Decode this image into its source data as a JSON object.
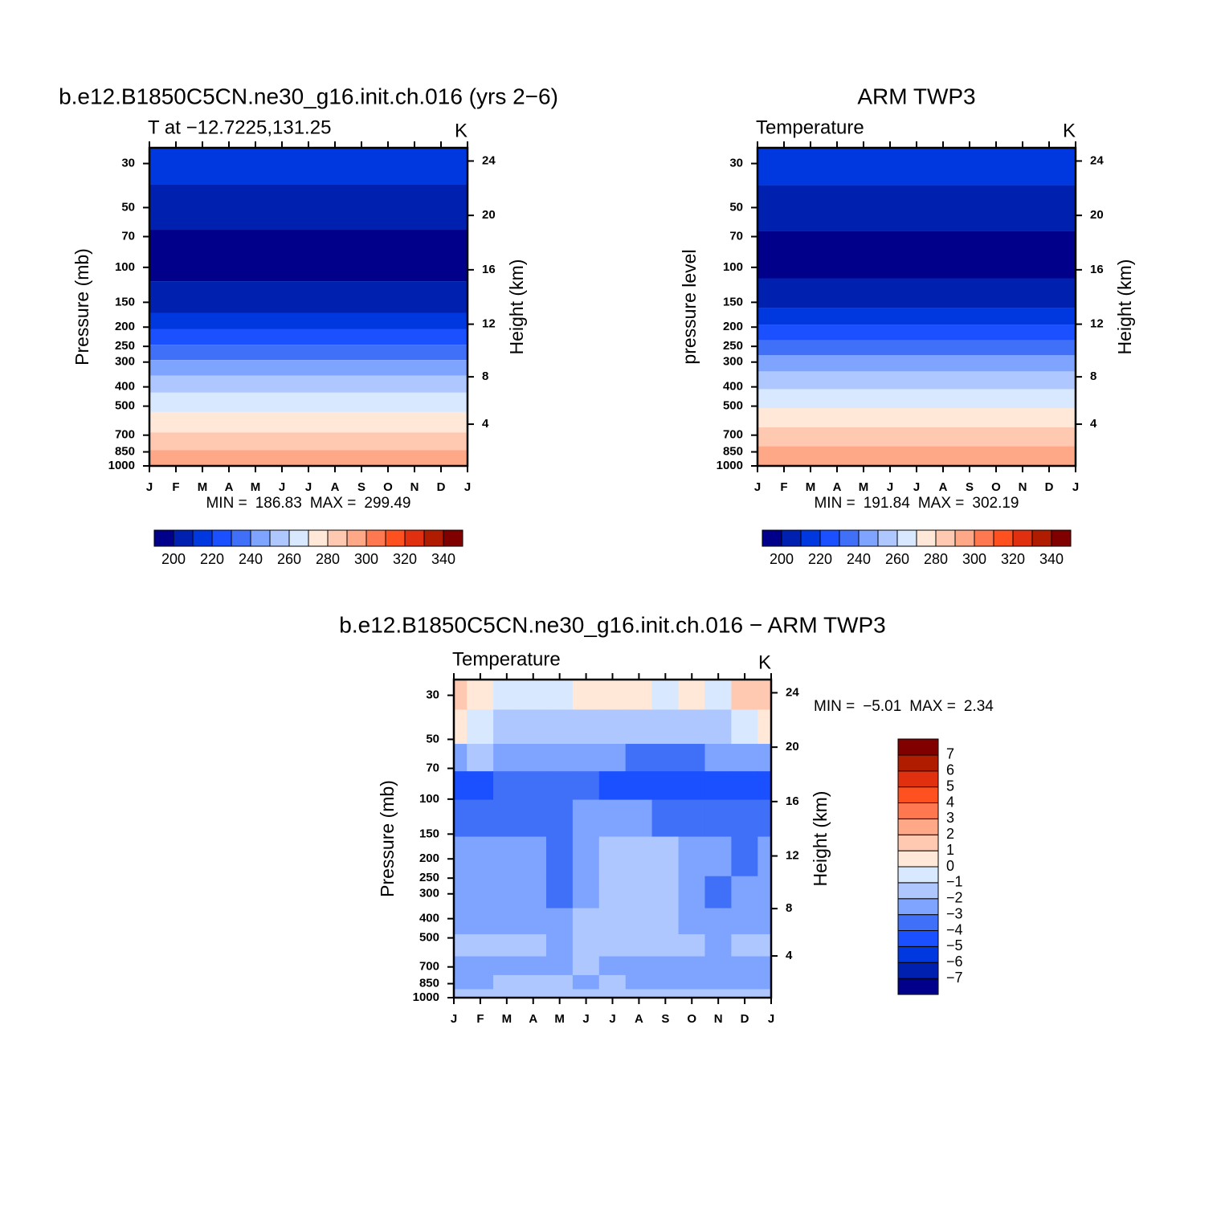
{
  "chart_data": [
    {
      "type": "contour",
      "title": "b.e12.B1850C5CN.ne30_g16.init.ch.016 (yrs 2−6)",
      "subtitle": "T at −12.7225,131.25",
      "units": "K",
      "ylabel": "Pressure (mb)",
      "y2label": "Height (km)",
      "categories": [
        "J",
        "F",
        "M",
        "A",
        "M",
        "J",
        "J",
        "A",
        "S",
        "O",
        "N",
        "D",
        "J"
      ],
      "ylim": [
        1000,
        25
      ],
      "yticks": [
        30,
        50,
        70,
        100,
        150,
        200,
        250,
        300,
        400,
        500,
        700,
        850,
        1000
      ],
      "y2ticks": [
        4,
        8,
        12,
        16,
        20,
        24
      ],
      "log_scale": true,
      "pressure": [
        31,
        47,
        89,
        155,
        187,
        225,
        268,
        320,
        386,
        474,
        604,
        763,
        911
      ],
      "values": [
        215,
        205,
        195,
        205,
        215,
        225,
        235,
        245,
        255,
        265,
        275,
        285,
        295
      ],
      "stats": [
        {
          "name": "MIN =",
          "value": 186.83
        },
        {
          "name": "MAX =",
          "value": 299.49
        }
      ],
      "colorbar": "horizontal",
      "levels": [
        200,
        210,
        220,
        230,
        240,
        250,
        260,
        270,
        280,
        290,
        300,
        310,
        320,
        330,
        340
      ],
      "colorbar_ticks": [
        200,
        220,
        240,
        260,
        280,
        300,
        320,
        340
      ],
      "colors": [
        "#00008a",
        "#0020b0",
        "#0038e0",
        "#1a50ff",
        "#4070f8",
        "#7ea4ff",
        "#aec8ff",
        "#d8e8ff",
        "#ffe8d8",
        "#ffc8b0",
        "#ffa888",
        "#ff7850",
        "#ff5020",
        "#e03010",
        "#b01c00",
        "#800000"
      ]
    },
    {
      "type": "contour",
      "title": "ARM TWP3",
      "subtitle": "Temperature",
      "units": "K",
      "ylabel": "pressure level",
      "y2label": "Height (km)",
      "categories": [
        "J",
        "F",
        "M",
        "A",
        "M",
        "J",
        "J",
        "A",
        "S",
        "O",
        "N",
        "D",
        "J"
      ],
      "ylim": [
        1000,
        25
      ],
      "yticks": [
        30,
        50,
        70,
        100,
        150,
        200,
        250,
        300,
        400,
        500,
        700,
        850,
        1000
      ],
      "y2ticks": [
        4,
        8,
        12,
        16,
        20,
        24
      ],
      "log_scale": true,
      "pressure": [
        31,
        48,
        89,
        145,
        177,
        213,
        254,
        303,
        369,
        457,
        574,
        713,
        890
      ],
      "values": [
        215,
        205,
        195,
        205,
        215,
        225,
        235,
        245,
        255,
        265,
        275,
        285,
        295
      ],
      "stats": [
        {
          "name": "MIN =",
          "value": 191.84
        },
        {
          "name": "MAX =",
          "value": 302.19
        }
      ],
      "colorbar": "horizontal",
      "levels": [
        200,
        210,
        220,
        230,
        240,
        250,
        260,
        270,
        280,
        290,
        300,
        310,
        320,
        330,
        340
      ],
      "colorbar_ticks": [
        200,
        220,
        240,
        260,
        280,
        300,
        320,
        340
      ],
      "colors": [
        "#00008a",
        "#0020b0",
        "#0038e0",
        "#1a50ff",
        "#4070f8",
        "#7ea4ff",
        "#aec8ff",
        "#d8e8ff",
        "#ffe8d8",
        "#ffc8b0",
        "#ffa888",
        "#ff7850",
        "#ff5020",
        "#e03010",
        "#b01c00",
        "#800000"
      ]
    },
    {
      "type": "contour2d",
      "title": "b.e12.B1850C5CN.ne30_g16.init.ch.016 − ARM TWP3",
      "subtitle": "Temperature",
      "units": "K",
      "ylabel": "Pressure (mb)",
      "y2label": "Height (km)",
      "categories": [
        "J",
        "F",
        "M",
        "A",
        "M",
        "J",
        "J",
        "A",
        "S",
        "O",
        "N",
        "D",
        "J"
      ],
      "ylim": [
        1000,
        25
      ],
      "yticks": [
        30,
        50,
        70,
        100,
        150,
        200,
        250,
        300,
        400,
        500,
        700,
        850,
        1000
      ],
      "y2ticks": [
        4,
        8,
        12,
        16,
        20,
        24
      ],
      "log_scale": true,
      "pressure": [
        28,
        45,
        62,
        85,
        120,
        200,
        300,
        420,
        550,
        700,
        850,
        970
      ],
      "values": [
        [
          1.2,
          0.5,
          -0.5,
          -0.5,
          -0.5,
          0.3,
          0.3,
          0.3,
          -0.5,
          0.3,
          -0.5,
          1.2,
          1.2
        ],
        [
          0.3,
          -0.5,
          -1.5,
          -1.5,
          -1.5,
          -1.5,
          -1.5,
          -1.5,
          -1.5,
          -1.5,
          -1.5,
          -0.5,
          0.3
        ],
        [
          -2.5,
          -1.5,
          -2.5,
          -2.5,
          -2.5,
          -2.5,
          -2.5,
          -3.5,
          -3.5,
          -3.5,
          -2.5,
          -2.5,
          -2.5
        ],
        [
          -4.5,
          -4.5,
          -3.5,
          -3.5,
          -3.5,
          -3.5,
          -4.5,
          -4.5,
          -4.5,
          -4.5,
          -4.5,
          -4.5,
          -4.5
        ],
        [
          -3.5,
          -3.5,
          -3.5,
          -3.5,
          -3.5,
          -2.5,
          -2.5,
          -2.5,
          -3.5,
          -3.5,
          -3.5,
          -3.5,
          -3.5
        ],
        [
          -2.5,
          -2.5,
          -2.5,
          -2.5,
          -3.5,
          -2.5,
          -1.5,
          -1.5,
          -1.5,
          -2.5,
          -2.5,
          -3.5,
          -2.5
        ],
        [
          -2.5,
          -2.5,
          -2.5,
          -2.5,
          -3.5,
          -2.5,
          -1.5,
          -1.5,
          -1.5,
          -2.5,
          -3.5,
          -2.5,
          -2.5
        ],
        [
          -2.5,
          -2.5,
          -2.5,
          -2.5,
          -2.5,
          -1.5,
          -1.5,
          -1.5,
          -1.5,
          -2.5,
          -2.5,
          -2.5,
          -2.5
        ],
        [
          -1.5,
          -1.5,
          -1.5,
          -1.5,
          -2.5,
          -1.5,
          -1.5,
          -1.5,
          -1.5,
          -1.5,
          -2.5,
          -1.5,
          -1.5
        ],
        [
          -2.5,
          -2.5,
          -2.5,
          -2.5,
          -2.5,
          -1.5,
          -2.5,
          -2.5,
          -2.5,
          -2.5,
          -2.5,
          -2.5,
          -2.5
        ],
        [
          -2.5,
          -2.5,
          -1.5,
          -1.5,
          -1.5,
          -2.5,
          -1.5,
          -2.5,
          -2.5,
          -2.5,
          -2.5,
          -2.5,
          -2.5
        ],
        [
          -1.5,
          -1.5,
          -1.5,
          -1.5,
          -1.5,
          -1.5,
          -1.5,
          -1.5,
          -1.5,
          -1.5,
          -1.5,
          -1.5,
          -1.5
        ]
      ],
      "stats": [
        {
          "name": "MIN =",
          "value": -5.01,
          "label": "−5.01"
        },
        {
          "name": "MAX =",
          "value": 2.34
        }
      ],
      "colorbar": "vertical",
      "levels": [
        -7,
        -6,
        -5,
        -4,
        -3,
        -2,
        -1,
        0,
        1,
        2,
        3,
        4,
        5,
        6,
        7
      ],
      "colorbar_ticks": [
        {
          "value": -7,
          "label": "−7"
        },
        {
          "value": -6,
          "label": "−6"
        },
        {
          "value": -5,
          "label": "−5"
        },
        {
          "value": -4,
          "label": "−4"
        },
        {
          "value": -3,
          "label": "−3"
        },
        {
          "value": -2,
          "label": "−2"
        },
        {
          "value": -1,
          "label": "−1"
        },
        0,
        1,
        2,
        3,
        4,
        5,
        6,
        7
      ],
      "colors": [
        "#00008a",
        "#0020b0",
        "#0038e0",
        "#1a50ff",
        "#4070f8",
        "#7ea4ff",
        "#aec8ff",
        "#d8e8ff",
        "#ffe8d8",
        "#ffc8b0",
        "#ffa888",
        "#ff7850",
        "#ff5020",
        "#e03010",
        "#b01c00",
        "#800000"
      ]
    }
  ]
}
